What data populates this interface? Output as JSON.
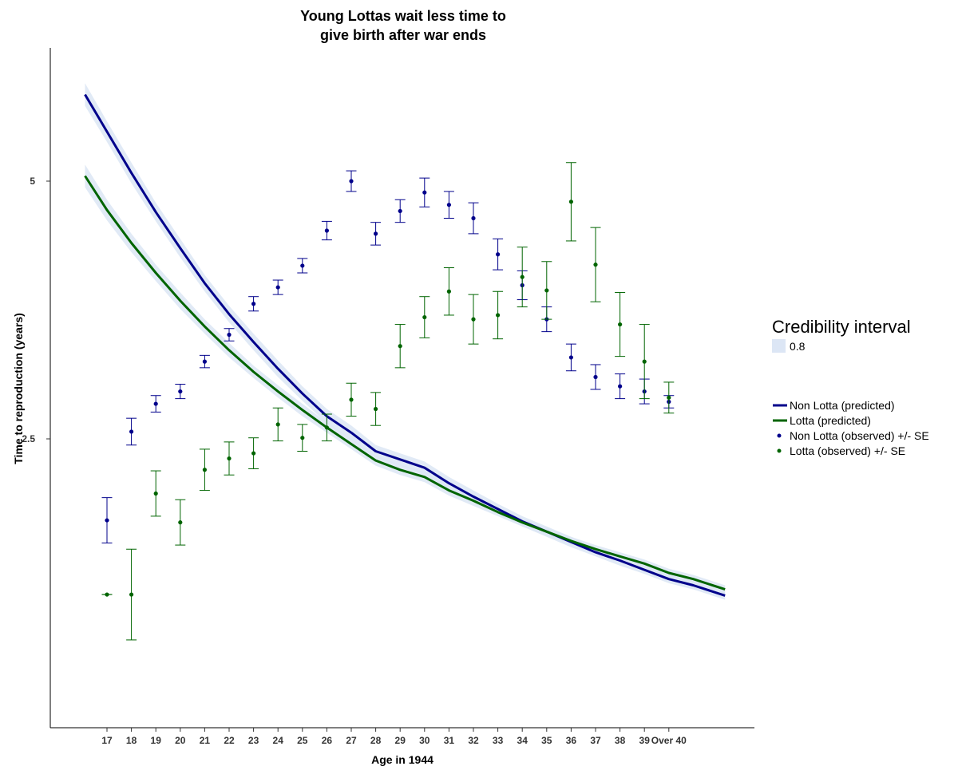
{
  "chart_data": {
    "type": "line",
    "title": "Young Lottas wait less time to\ngive birth after war ends",
    "xlabel": "Age in 1944",
    "ylabel": "Time to reproduction (years)",
    "categories": [
      "17",
      "18",
      "19",
      "20",
      "21",
      "22",
      "23",
      "24",
      "25",
      "26",
      "27",
      "28",
      "29",
      "30",
      "31",
      "32",
      "33",
      "34",
      "35",
      "36",
      "37",
      "38",
      "39",
      "Over 40"
    ],
    "y_ticks": [
      2.5,
      5
    ],
    "y_tick_labels": [
      "2.5",
      "5"
    ],
    "ylim": [
      -0.2,
      6.3
    ],
    "grid": false,
    "colors": {
      "non_lotta": "#00008B",
      "lotta": "#006400",
      "ribbon": "#DCE6F5"
    },
    "predicted_x": [
      16.1,
      17,
      18,
      19,
      20,
      21,
      22,
      23,
      24,
      25,
      26,
      27,
      28,
      29,
      30,
      31,
      32,
      33,
      34,
      35,
      36,
      37,
      38,
      39,
      40,
      41,
      42.3
    ],
    "predicted_series": [
      {
        "name": "Non Lotta (predicted)",
        "color": "#00008B",
        "values": [
          5.84,
          5.48,
          5.08,
          4.7,
          4.35,
          4.01,
          3.71,
          3.44,
          3.18,
          2.94,
          2.72,
          2.56,
          2.38,
          2.3,
          2.22,
          2.07,
          1.94,
          1.82,
          1.7,
          1.6,
          1.5,
          1.4,
          1.32,
          1.23,
          1.14,
          1.08,
          0.98
        ],
        "lower": [
          5.73,
          5.38,
          4.98,
          4.61,
          4.26,
          3.93,
          3.63,
          3.36,
          3.1,
          2.87,
          2.65,
          2.49,
          2.32,
          2.24,
          2.16,
          2.01,
          1.88,
          1.77,
          1.65,
          1.55,
          1.45,
          1.36,
          1.27,
          1.19,
          1.1,
          1.04,
          0.94
        ],
        "upper": [
          5.95,
          5.58,
          5.18,
          4.79,
          4.44,
          4.09,
          3.79,
          3.52,
          3.26,
          3.01,
          2.79,
          2.63,
          2.44,
          2.36,
          2.28,
          2.13,
          2.0,
          1.87,
          1.75,
          1.65,
          1.55,
          1.44,
          1.37,
          1.27,
          1.18,
          1.12,
          1.02
        ]
      },
      {
        "name": "Lotta (predicted)",
        "color": "#006400",
        "values": [
          5.05,
          4.72,
          4.4,
          4.11,
          3.84,
          3.59,
          3.36,
          3.15,
          2.96,
          2.78,
          2.61,
          2.45,
          2.29,
          2.2,
          2.13,
          2.0,
          1.9,
          1.79,
          1.69,
          1.6,
          1.51,
          1.43,
          1.36,
          1.29,
          1.2,
          1.14,
          1.04
        ],
        "lower": [
          4.94,
          4.62,
          4.31,
          4.03,
          3.76,
          3.52,
          3.29,
          3.09,
          2.9,
          2.72,
          2.56,
          2.4,
          2.24,
          2.15,
          2.08,
          1.95,
          1.85,
          1.75,
          1.65,
          1.56,
          1.47,
          1.39,
          1.32,
          1.25,
          1.16,
          1.1,
          1.0
        ],
        "upper": [
          5.16,
          4.82,
          4.49,
          4.19,
          3.92,
          3.66,
          3.43,
          3.21,
          3.02,
          2.84,
          2.66,
          2.5,
          2.34,
          2.25,
          2.18,
          2.05,
          1.95,
          1.83,
          1.73,
          1.64,
          1.55,
          1.47,
          1.4,
          1.33,
          1.24,
          1.18,
          1.08
        ]
      }
    ],
    "observed_series": [
      {
        "name": "Non Lotta (observed) +/- SE",
        "color": "#00008B",
        "values": [
          1.71,
          2.57,
          2.84,
          2.96,
          3.25,
          3.51,
          3.81,
          3.97,
          4.18,
          4.52,
          5.0,
          4.49,
          4.71,
          4.89,
          4.77,
          4.64,
          4.29,
          3.99,
          3.66,
          3.29,
          3.1,
          3.01,
          2.96,
          2.86
        ],
        "se": [
          0.22,
          0.13,
          0.08,
          0.07,
          0.06,
          0.06,
          0.07,
          0.07,
          0.07,
          0.09,
          0.1,
          0.11,
          0.11,
          0.14,
          0.13,
          0.15,
          0.15,
          0.14,
          0.12,
          0.13,
          0.12,
          0.12,
          0.12,
          0.06
        ]
      },
      {
        "name": "Lotta (observed) +/- SE",
        "color": "#006400",
        "values": [
          0.99,
          0.99,
          1.97,
          1.69,
          2.2,
          2.31,
          2.36,
          2.64,
          2.51,
          2.61,
          2.88,
          2.79,
          3.4,
          3.68,
          3.93,
          3.66,
          3.7,
          4.07,
          3.94,
          4.8,
          4.19,
          3.61,
          3.25,
          2.9
        ],
        "se": [
          0.0,
          0.44,
          0.22,
          0.22,
          0.2,
          0.16,
          0.15,
          0.16,
          0.13,
          0.13,
          0.16,
          0.16,
          0.21,
          0.2,
          0.23,
          0.24,
          0.23,
          0.29,
          0.28,
          0.38,
          0.36,
          0.31,
          0.36,
          0.15
        ]
      }
    ],
    "legend": {
      "title": "Credibility interval",
      "ribbon_label": "0.8",
      "items": [
        "Non Lotta (predicted)",
        "Lotta (predicted)",
        "Non Lotta (observed) +/- SE",
        "Lotta (observed) +/- SE"
      ],
      "position": "right"
    }
  }
}
